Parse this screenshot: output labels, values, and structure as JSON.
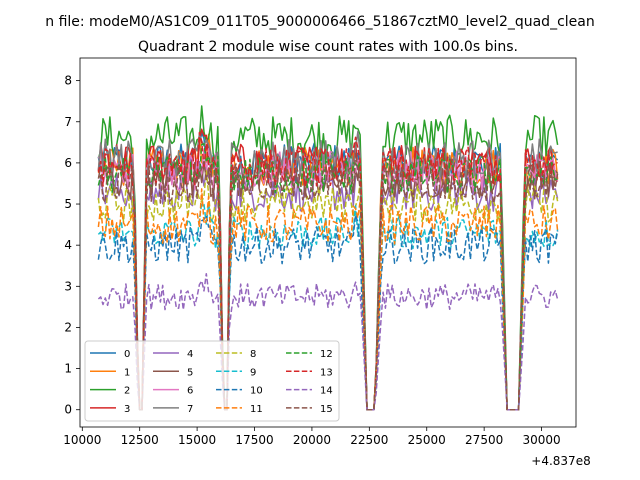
{
  "chart_data": {
    "type": "line",
    "suptitle": "n file: modeM0/AS1C09_011T05_9000006466_51867cztM0_level2_quad_clean",
    "title": "Quadrant 2 module wise count rates with 100.0s bins.",
    "xlabel": "",
    "ylabel": "",
    "x_offset_label": "+4.837e8",
    "xlim": [
      9900,
      31500
    ],
    "ylim": [
      -0.42,
      8.55
    ],
    "x_ticks": [
      10000,
      12500,
      15000,
      17500,
      20000,
      22500,
      25000,
      27500,
      30000
    ],
    "x_tick_labels": [
      "10000",
      "12500",
      "15000",
      "17500",
      "20000",
      "22500",
      "25000",
      "27500",
      "30000"
    ],
    "y_ticks": [
      0,
      1,
      2,
      3,
      4,
      5,
      6,
      7,
      8
    ],
    "y_tick_labels": [
      "0",
      "1",
      "2",
      "3",
      "4",
      "5",
      "6",
      "7",
      "8"
    ],
    "x_range": [
      10700,
      30700
    ],
    "bin_width": 100,
    "gaps": [
      {
        "start": 12250,
        "end": 12800,
        "floor_start": 12450,
        "floor_end": 12600
      },
      {
        "start": 15950,
        "end": 16450,
        "floor_start": 16150,
        "floor_end": 16300
      },
      {
        "start": 22100,
        "end": 23050,
        "floor_start": 22400,
        "floor_end": 22750
      },
      {
        "start": 28200,
        "end": 29300,
        "floor_start": 28500,
        "floor_end": 29000
      }
    ],
    "grid": false,
    "legend": {
      "placement": "lower-left",
      "columns": 4
    },
    "series": [
      {
        "name": "0",
        "color": "#1f77b4",
        "dashed": false,
        "mean": 6.0,
        "noise": 0.3
      },
      {
        "name": "1",
        "color": "#ff7f0e",
        "dashed": false,
        "mean": 5.9,
        "noise": 0.3
      },
      {
        "name": "2",
        "color": "#2ca02c",
        "dashed": false,
        "mean": 6.6,
        "noise": 0.35
      },
      {
        "name": "3",
        "color": "#d62728",
        "dashed": false,
        "mean": 6.0,
        "noise": 0.3
      },
      {
        "name": "4",
        "color": "#9467bd",
        "dashed": false,
        "mean": 5.3,
        "noise": 0.3
      },
      {
        "name": "5",
        "color": "#8c564b",
        "dashed": false,
        "mean": 5.6,
        "noise": 0.3
      },
      {
        "name": "6",
        "color": "#e377c2",
        "dashed": false,
        "mean": 5.8,
        "noise": 0.3
      },
      {
        "name": "7",
        "color": "#7f7f7f",
        "dashed": false,
        "mean": 6.1,
        "noise": 0.3
      },
      {
        "name": "8",
        "color": "#bcbd22",
        "dashed": true,
        "mean": 5.0,
        "noise": 0.28
      },
      {
        "name": "9",
        "color": "#17becf",
        "dashed": true,
        "mean": 4.3,
        "noise": 0.25
      },
      {
        "name": "10",
        "color": "#1f77b4",
        "dashed": true,
        "mean": 4.0,
        "noise": 0.28
      },
      {
        "name": "11",
        "color": "#ff7f0e",
        "dashed": true,
        "mean": 4.5,
        "noise": 0.3
      },
      {
        "name": "12",
        "color": "#2ca02c",
        "dashed": true,
        "mean": 5.7,
        "noise": 0.3
      },
      {
        "name": "13",
        "color": "#d62728",
        "dashed": true,
        "mean": 5.9,
        "noise": 0.3
      },
      {
        "name": "14",
        "color": "#9467bd",
        "dashed": true,
        "mean": 2.75,
        "noise": 0.2
      },
      {
        "name": "15",
        "color": "#8c564b",
        "dashed": true,
        "mean": 5.5,
        "noise": 0.3
      }
    ]
  }
}
